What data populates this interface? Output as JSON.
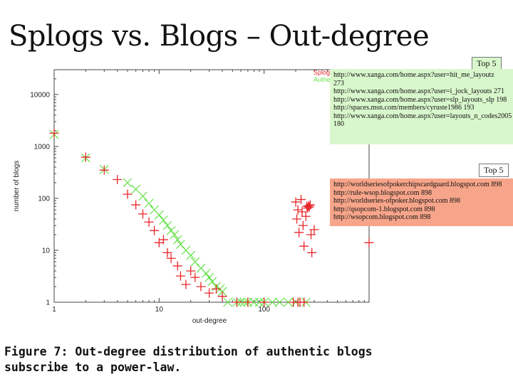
{
  "slide": {
    "title": "Splogs vs. Blogs – Out-degree"
  },
  "chart_data": {
    "type": "scatter",
    "xscale": "log",
    "yscale": "log",
    "xlabel": "out-degree",
    "ylabel": "number of blogs",
    "xlim": [
      1,
      1000
    ],
    "ylim": [
      1,
      30000
    ],
    "xticks": [
      "1",
      "10",
      "100"
    ],
    "yticks": [
      "1",
      "10",
      "100",
      "1000",
      "10000"
    ],
    "legend_position": "top-right",
    "series": [
      {
        "name": "Splog",
        "color": "#e8262a",
        "marker": "plus",
        "points": [
          [
            1,
            1800
          ],
          [
            2,
            620
          ],
          [
            3,
            350
          ],
          [
            4,
            230
          ],
          [
            5,
            120
          ],
          [
            6,
            75
          ],
          [
            7,
            50
          ],
          [
            8,
            35
          ],
          [
            9,
            24
          ],
          [
            10,
            14
          ],
          [
            11,
            16
          ],
          [
            12,
            9
          ],
          [
            13,
            7
          ],
          [
            15,
            5
          ],
          [
            16,
            3.2
          ],
          [
            18,
            2.2
          ],
          [
            20,
            4
          ],
          [
            22,
            3
          ],
          [
            25,
            2
          ],
          [
            30,
            1.5
          ],
          [
            35,
            1.8
          ],
          [
            40,
            1.3
          ],
          [
            55,
            1
          ],
          [
            70,
            1
          ],
          [
            100,
            1
          ],
          [
            190,
            1
          ],
          [
            210,
            1
          ],
          [
            220,
            1
          ],
          [
            240,
            1
          ],
          [
            200,
            85
          ],
          [
            205,
            40
          ],
          [
            210,
            60
          ],
          [
            215,
            22
          ],
          [
            225,
            95
          ],
          [
            230,
            55
          ],
          [
            235,
            30
          ],
          [
            240,
            12
          ],
          [
            250,
            45
          ],
          [
            255,
            70
          ],
          [
            260,
            65
          ],
          [
            265,
            72
          ],
          [
            270,
            68
          ],
          [
            275,
            75
          ],
          [
            280,
            20
          ],
          [
            285,
            9
          ],
          [
            300,
            25
          ],
          [
            1000,
            14
          ]
        ]
      },
      {
        "name": "Authentic Blog",
        "color": "#66e24a",
        "marker": "x",
        "points": [
          [
            1,
            1700
          ],
          [
            2,
            600
          ],
          [
            3,
            360
          ],
          [
            5,
            200
          ],
          [
            6,
            150
          ],
          [
            7,
            110
          ],
          [
            8,
            80
          ],
          [
            9,
            60
          ],
          [
            10,
            48
          ],
          [
            11,
            38
          ],
          [
            12,
            30
          ],
          [
            13,
            24
          ],
          [
            14,
            20
          ],
          [
            15,
            16
          ],
          [
            16,
            13
          ],
          [
            18,
            10
          ],
          [
            20,
            8
          ],
          [
            22,
            6
          ],
          [
            25,
            4.5
          ],
          [
            28,
            3.6
          ],
          [
            30,
            3
          ],
          [
            32,
            2.5
          ],
          [
            35,
            2
          ],
          [
            38,
            1.8
          ],
          [
            40,
            1.6
          ],
          [
            45,
            1
          ],
          [
            55,
            1
          ],
          [
            60,
            1
          ],
          [
            65,
            1
          ],
          [
            70,
            1
          ],
          [
            80,
            1
          ],
          [
            90,
            1
          ],
          [
            100,
            1
          ],
          [
            120,
            1
          ],
          [
            140,
            1
          ],
          [
            170,
            1
          ],
          [
            200,
            1
          ],
          [
            250,
            1
          ]
        ]
      }
    ]
  },
  "callout_top": {
    "tab": "Top 5",
    "lines": [
      "http://www.xanga.com/home.aspx?user=hit_me_layoutz",
      "273",
      "http://www.xanga.com/home.aspx?user=i_jock_layouts  271",
      "http://www.xanga.com/home.aspx?user=slp_layouts_slp 198",
      "http://spaces.msn.com/members/cyruste1986  193",
      "http://www.xanga.com/home.aspx?user=layouts_n_codes2005",
      "180"
    ],
    "color": "#d9f7cc"
  },
  "callout_bottom": {
    "tab": "Top 5",
    "lines": [
      "http://worldseriesofpokerchipscardguard.blogspot.com  898",
      "http://rule-wsop.blogspot.com   898",
      "http://worldseries-ofpoker.blogspot.com  898",
      "http://qsopcom-1.blogspot.com    898",
      "http://wsopcom.blogspot.com     898"
    ],
    "color": "#f7a58a"
  },
  "caption": {
    "line1": "Figure 7: Out-degree distribution of authentic blogs",
    "line2": "subscribe to a power-law."
  }
}
